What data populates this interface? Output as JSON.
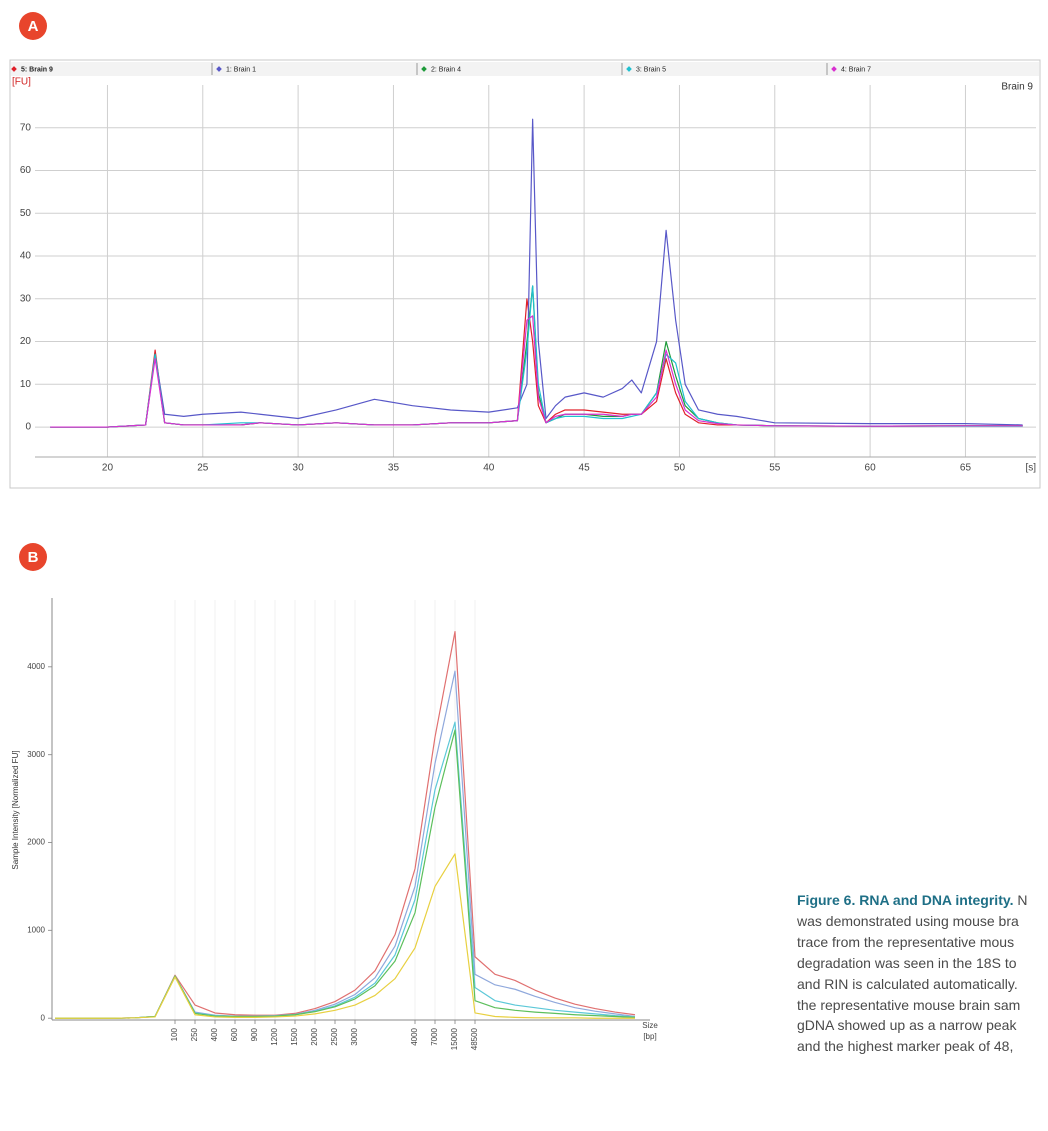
{
  "panel_labels": [
    "A",
    "B"
  ],
  "chart_data": [
    {
      "type": "line",
      "title": "Brain 9",
      "ylabel": "[FU]",
      "xlabel": "[s]",
      "x": [
        17,
        20,
        22,
        22.5,
        23,
        24,
        25,
        27,
        28,
        30,
        32,
        34,
        36,
        38,
        40,
        41.5,
        42,
        42.3,
        42.6,
        43,
        43.5,
        44,
        45,
        46,
        47,
        47.5,
        48,
        48.8,
        49.3,
        49.8,
        50.3,
        51,
        52,
        53,
        55,
        60,
        65,
        68
      ],
      "series": [
        {
          "name": "5: Brain 9",
          "color": "#e0202a",
          "values": [
            0,
            0,
            0.5,
            18,
            1,
            0.5,
            0.5,
            0.5,
            1,
            0.5,
            1,
            0.5,
            0.5,
            1,
            1,
            1.5,
            30,
            20,
            5,
            1,
            3,
            4,
            4,
            3.5,
            3,
            3,
            3,
            6,
            16,
            8,
            3,
            1,
            0.5,
            0.5,
            0.3,
            0.2,
            0.3,
            0.3
          ]
        },
        {
          "name": "1: Brain 1",
          "color": "#5858c8",
          "values": [
            0,
            0,
            0.5,
            17,
            3,
            2.5,
            3,
            3.5,
            3,
            2,
            4,
            6.5,
            5,
            4,
            3.5,
            4.5,
            10,
            72,
            20,
            2,
            5,
            7,
            8,
            7,
            9,
            11,
            8,
            20,
            46,
            25,
            10,
            4,
            3,
            2.5,
            1,
            0.8,
            0.8,
            0.5
          ]
        },
        {
          "name": "2: Brain 4",
          "color": "#1e9a3a",
          "values": [
            0,
            0,
            0.5,
            17,
            1,
            0.5,
            0.5,
            0.5,
            1,
            0.5,
            1,
            0.5,
            0.5,
            1,
            1,
            1.5,
            20,
            33,
            8,
            1,
            2,
            3,
            3,
            2.5,
            2.5,
            3,
            3,
            8,
            20,
            12,
            5,
            2,
            1,
            0.5,
            0.3,
            0.2,
            0.3,
            0.3
          ]
        },
        {
          "name": "3: Brain 5",
          "color": "#20c0d0",
          "values": [
            0,
            0,
            0.5,
            17,
            1,
            0.5,
            0.5,
            1,
            1,
            0.5,
            1,
            0.5,
            0.5,
            1,
            1,
            1.5,
            18,
            33,
            10,
            1,
            2,
            2.5,
            2.5,
            2,
            2,
            2.5,
            3,
            8,
            17,
            15,
            6,
            2,
            1,
            0.5,
            0.3,
            0.2,
            0.2,
            0.2
          ]
        },
        {
          "name": "4: Brain 7",
          "color": "#d830d0",
          "values": [
            0,
            0,
            0.5,
            16,
            1,
            0.5,
            0.5,
            0.5,
            1,
            0.5,
            1,
            0.5,
            0.5,
            1,
            1,
            1.5,
            25,
            26,
            7,
            1,
            2.5,
            3,
            3,
            3,
            2.5,
            3,
            3,
            7,
            18,
            10,
            4,
            1.5,
            0.8,
            0.5,
            0.3,
            0.2,
            0.3,
            0.3
          ]
        }
      ],
      "xlim": [
        16.2,
        68.7
      ],
      "ylim": [
        -7,
        80
      ],
      "xticks": [
        20,
        25,
        30,
        35,
        40,
        45,
        50,
        55,
        60,
        65
      ],
      "yticks": [
        0,
        10,
        20,
        30,
        40,
        50,
        60,
        70
      ],
      "grid": true,
      "legend": "top"
    },
    {
      "type": "line",
      "ylabel": "Sample Intensity [Normalized FU]",
      "xlabel": "Size",
      "xunit": "[bp]",
      "categories": [
        null,
        null,
        null,
        null,
        null,
        null,
        "100",
        "250",
        "400",
        "600",
        "900",
        "1200",
        "1500",
        "2000",
        "2500",
        "3000",
        null,
        null,
        "4000",
        "7000",
        "15000",
        "48500",
        null,
        null,
        null,
        null,
        null,
        null,
        null,
        null
      ],
      "series": [
        {
          "color": "#e07070",
          "values": [
            0,
            0,
            0,
            0,
            5,
            20,
            490,
            150,
            60,
            40,
            35,
            35,
            55,
            110,
            190,
            320,
            540,
            950,
            1700,
            3200,
            4400,
            700,
            500,
            430,
            320,
            230,
            160,
            110,
            70,
            40
          ]
        },
        {
          "color": "#8fa8dc",
          "values": [
            0,
            0,
            0,
            0,
            5,
            20,
            480,
            70,
            35,
            25,
            25,
            30,
            45,
            90,
            160,
            270,
            460,
            820,
            1500,
            2900,
            3950,
            500,
            380,
            330,
            250,
            180,
            120,
            80,
            50,
            20
          ]
        },
        {
          "color": "#5cc8d8",
          "values": [
            0,
            0,
            0,
            0,
            5,
            20,
            480,
            60,
            30,
            20,
            20,
            25,
            40,
            80,
            140,
            240,
            400,
            720,
            1350,
            2600,
            3370,
            350,
            200,
            150,
            120,
            90,
            70,
            50,
            30,
            15
          ]
        },
        {
          "color": "#5cbf5c",
          "values": [
            0,
            0,
            0,
            0,
            5,
            20,
            480,
            55,
            25,
            20,
            20,
            25,
            40,
            75,
            130,
            220,
            370,
            650,
            1200,
            2400,
            3280,
            200,
            120,
            90,
            70,
            55,
            40,
            30,
            20,
            10
          ]
        },
        {
          "color": "#e8d040",
          "values": [
            0,
            0,
            0,
            0,
            5,
            15,
            470,
            40,
            15,
            10,
            10,
            15,
            25,
            50,
            90,
            150,
            260,
            450,
            800,
            1500,
            1870,
            60,
            20,
            10,
            5,
            5,
            5,
            0,
            0,
            0
          ]
        }
      ],
      "ylim": [
        -20,
        4760
      ],
      "yticks": [
        0,
        1000,
        2000,
        3000,
        4000
      ],
      "grid": true
    }
  ],
  "caption": {
    "title": "Figure 6. RNA and DNA integrity.",
    "text": [
      "N",
      "was demonstrated using mouse bra",
      "trace from the representative mous",
      "degradation was seen in the 18S to",
      "and RIN is calculated automatically.",
      "the representative mouse brain sam",
      "gDNA showed up as a narrow peak",
      "and the highest marker peak of 48,"
    ]
  }
}
